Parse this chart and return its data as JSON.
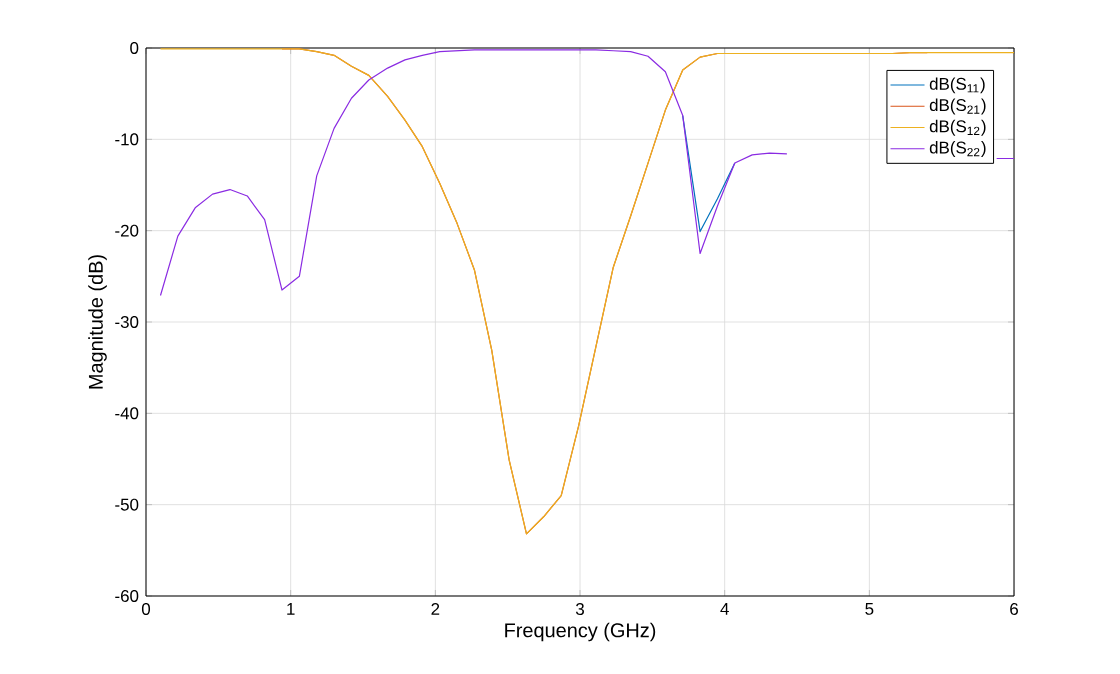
{
  "chart_data": {
    "type": "line",
    "xlabel": "Frequency (GHz)",
    "ylabel": "Magnitude (dB)",
    "x": [
      0.1,
      0.22,
      0.34,
      0.46,
      0.58,
      0.7,
      0.82,
      0.94,
      1.06,
      1.18,
      1.3,
      1.42,
      1.54,
      1.67,
      1.79,
      1.91,
      2.03,
      2.15,
      2.27,
      2.39,
      2.51,
      2.63,
      2.75,
      2.87,
      2.99,
      3.11,
      3.23,
      3.35,
      3.47,
      3.59,
      3.71,
      3.83,
      3.95,
      4.07,
      4.19,
      4.31,
      4.43,
      4.55,
      4.67,
      4.79,
      4.92,
      5.04,
      5.16,
      5.28,
      5.4,
      5.52,
      5.64,
      5.76,
      5.88,
      6.0
    ],
    "series": [
      {
        "name": "dB(S$_{11}$)",
        "color": "#0072bd",
        "values": [
          null,
          null,
          null,
          null,
          null,
          null,
          null,
          null,
          null,
          null,
          null,
          null,
          null,
          null,
          null,
          null,
          null,
          null,
          null,
          null,
          null,
          null,
          null,
          null,
          null,
          null,
          null,
          null,
          null,
          null,
          -7.4,
          -20.1,
          -16.5,
          -12.6,
          null,
          null,
          null,
          null,
          null,
          null,
          null,
          null,
          null,
          null,
          null,
          null,
          null,
          null,
          null,
          null
        ]
      },
      {
        "name": "dB(S$_{21}$)",
        "color": "#d95319",
        "values": [
          null,
          null,
          null,
          null,
          null,
          null,
          null,
          -0.1,
          -0.1,
          -0.4,
          -0.8,
          -2.0,
          -3.0,
          -5.3,
          -7.9,
          -10.8,
          -14.8,
          -19.2,
          -24.3,
          -33.1,
          -45.1,
          -53.2,
          -51.3,
          -49.0,
          -41.4,
          -32.7,
          -24.0,
          -18.4,
          -12.6,
          -6.8,
          -2.4,
          -1.0,
          -0.6,
          -0.6,
          -0.6,
          -0.6,
          -0.6,
          -0.6,
          -0.6,
          -0.6,
          -0.6,
          -0.6,
          -0.6,
          -0.5,
          -0.5,
          null,
          null,
          null,
          null,
          null
        ]
      },
      {
        "name": "dB(S$_{12}$)",
        "color": "#edb120",
        "values": [
          -0.1,
          -0.1,
          -0.1,
          -0.1,
          -0.1,
          -0.1,
          -0.1,
          -0.1,
          -0.1,
          -0.4,
          -0.8,
          -2.0,
          -3.0,
          -5.3,
          -7.9,
          -10.8,
          -14.8,
          -19.2,
          -24.3,
          -33.1,
          -45.1,
          -53.2,
          -51.3,
          -49.0,
          -41.4,
          -32.7,
          -24.0,
          -18.4,
          -12.6,
          -6.8,
          -2.4,
          -1.0,
          -0.6,
          -0.6,
          -0.6,
          -0.6,
          -0.6,
          -0.6,
          -0.6,
          -0.6,
          -0.6,
          -0.6,
          -0.6,
          -0.5,
          -0.5,
          -0.5,
          -0.5,
          -0.5,
          -0.5,
          -0.5
        ]
      },
      {
        "name": "dB(S$_{22}$)",
        "color": "#8a2be2",
        "values": [
          -27.1,
          -20.6,
          -17.5,
          -16.0,
          -15.5,
          -16.2,
          -18.8,
          -26.5,
          -25.0,
          -14.0,
          -8.8,
          -5.5,
          -3.5,
          -2.2,
          -1.3,
          -0.8,
          -0.4,
          -0.3,
          -0.2,
          -0.2,
          -0.2,
          -0.2,
          -0.2,
          -0.2,
          -0.2,
          -0.2,
          -0.3,
          -0.4,
          -0.9,
          -2.6,
          -7.4,
          -22.5,
          -17.3,
          -12.6,
          -11.7,
          -11.5,
          -11.6,
          null,
          null,
          null,
          null,
          null,
          null,
          null,
          null,
          null,
          null,
          null,
          -12.1,
          -12.1
        ]
      }
    ],
    "xlim": [
      0,
      6
    ],
    "xticks": [
      0,
      1,
      2,
      3,
      4,
      5,
      6
    ],
    "ylim": [
      -60,
      0
    ],
    "yticks": [
      -60,
      -50,
      -40,
      -30,
      -20,
      -10,
      0
    ],
    "grid": true,
    "legend": "top right",
    "marker": "none",
    "line_style": "solid"
  }
}
